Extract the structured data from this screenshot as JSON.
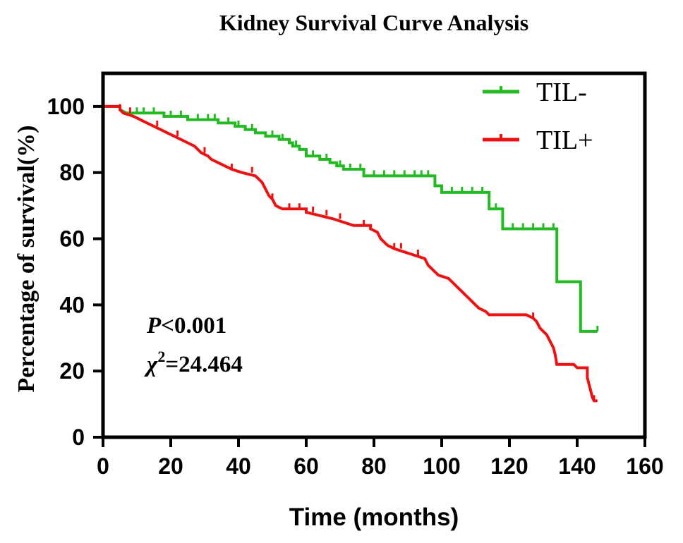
{
  "chart_data": {
    "type": "line",
    "title": "Kidney Survival Curve Analysis",
    "xlabel": "Time (months)",
    "ylabel": "Percentage of survival(%)",
    "xlim": [
      0,
      160
    ],
    "ylim": [
      0,
      110
    ],
    "xticks": [
      "0",
      "20",
      "40",
      "60",
      "80",
      "100",
      "120",
      "140",
      "160"
    ],
    "yticks": [
      "0",
      "20",
      "40",
      "60",
      "80",
      "100"
    ],
    "grid": false,
    "legend_position": "top-right",
    "annotations": {
      "p_label": "P",
      "p_value": "<0.001",
      "chi_label": "χ",
      "chi_sup": "2",
      "chi_value": "=24.464"
    },
    "series": [
      {
        "name": "TIL-",
        "color": "#22bb22",
        "points": [
          [
            0,
            100
          ],
          [
            5,
            100
          ],
          [
            5,
            99
          ],
          [
            7,
            98
          ],
          [
            18,
            98
          ],
          [
            18,
            97
          ],
          [
            25,
            97
          ],
          [
            25,
            96
          ],
          [
            34,
            96
          ],
          [
            34,
            95
          ],
          [
            39,
            95
          ],
          [
            39,
            94
          ],
          [
            42,
            94
          ],
          [
            42,
            93
          ],
          [
            45,
            93
          ],
          [
            45,
            92
          ],
          [
            48,
            92
          ],
          [
            48,
            91
          ],
          [
            52,
            91
          ],
          [
            52,
            90
          ],
          [
            55,
            90
          ],
          [
            55,
            89
          ],
          [
            56,
            89
          ],
          [
            56,
            88
          ],
          [
            58,
            88
          ],
          [
            58,
            87
          ],
          [
            60,
            87
          ],
          [
            60,
            85
          ],
          [
            64,
            85
          ],
          [
            64,
            84
          ],
          [
            67,
            84
          ],
          [
            67,
            83
          ],
          [
            69,
            83
          ],
          [
            69,
            82
          ],
          [
            71,
            82
          ],
          [
            71,
            81
          ],
          [
            77,
            81
          ],
          [
            77,
            79
          ],
          [
            98,
            79
          ],
          [
            98,
            76
          ],
          [
            100,
            76
          ],
          [
            100,
            74
          ],
          [
            114,
            74
          ],
          [
            114,
            69
          ],
          [
            118,
            69
          ],
          [
            118,
            63
          ],
          [
            134,
            63
          ],
          [
            134,
            47
          ],
          [
            141,
            47
          ],
          [
            141,
            32
          ],
          [
            146,
            32
          ]
        ],
        "censor_x": [
          5,
          10,
          12,
          15,
          20,
          23,
          28,
          31,
          33,
          37,
          40,
          44,
          50,
          53,
          57,
          62,
          66,
          70,
          73,
          76,
          80,
          83,
          86,
          89,
          92,
          94,
          96,
          103,
          106,
          109,
          112,
          116,
          121,
          124,
          127,
          130,
          133,
          146
        ]
      },
      {
        "name": "TIL+",
        "color": "#ee1111",
        "points": [
          [
            0,
            100
          ],
          [
            5,
            100
          ],
          [
            5,
            99
          ],
          [
            6,
            98
          ],
          [
            9,
            97
          ],
          [
            11,
            96
          ],
          [
            13,
            95
          ],
          [
            15,
            94
          ],
          [
            17,
            93
          ],
          [
            19,
            92
          ],
          [
            21,
            91
          ],
          [
            23,
            90
          ],
          [
            25,
            89
          ],
          [
            27,
            88
          ],
          [
            28,
            87
          ],
          [
            29,
            86
          ],
          [
            31,
            85
          ],
          [
            32,
            84
          ],
          [
            34,
            83
          ],
          [
            36,
            82
          ],
          [
            38,
            81
          ],
          [
            41,
            80
          ],
          [
            45,
            79
          ],
          [
            46,
            78
          ],
          [
            47,
            77
          ],
          [
            48,
            75
          ],
          [
            48.5,
            74
          ],
          [
            49,
            73
          ],
          [
            50,
            72
          ],
          [
            50.5,
            71
          ],
          [
            51,
            70
          ],
          [
            53,
            69
          ],
          [
            60,
            69
          ],
          [
            60,
            68
          ],
          [
            64,
            67
          ],
          [
            68,
            66
          ],
          [
            71,
            65
          ],
          [
            74,
            64
          ],
          [
            79,
            64
          ],
          [
            79,
            63
          ],
          [
            81,
            62
          ],
          [
            81.5,
            61
          ],
          [
            82,
            60
          ],
          [
            83,
            59
          ],
          [
            84,
            58
          ],
          [
            86,
            57
          ],
          [
            89,
            56
          ],
          [
            92,
            55
          ],
          [
            95,
            54
          ],
          [
            95.5,
            53
          ],
          [
            96,
            52
          ],
          [
            97,
            51
          ],
          [
            98,
            50
          ],
          [
            99,
            49
          ],
          [
            102,
            48
          ],
          [
            103,
            47
          ],
          [
            104,
            46
          ],
          [
            105,
            45
          ],
          [
            106,
            44
          ],
          [
            107,
            43
          ],
          [
            108,
            42
          ],
          [
            109,
            41
          ],
          [
            110,
            40
          ],
          [
            111,
            39
          ],
          [
            113,
            38
          ],
          [
            114,
            37
          ],
          [
            125,
            37
          ],
          [
            127,
            36
          ],
          [
            128,
            35
          ],
          [
            129,
            33
          ],
          [
            130,
            32
          ],
          [
            131,
            31
          ],
          [
            132,
            29
          ],
          [
            133,
            27
          ],
          [
            133.5,
            25
          ],
          [
            134,
            22
          ],
          [
            139,
            22
          ],
          [
            140,
            21
          ],
          [
            143,
            21
          ],
          [
            143,
            18
          ],
          [
            144,
            14
          ],
          [
            144.5,
            12
          ],
          [
            145,
            11
          ],
          [
            146,
            11
          ]
        ],
        "censor_x": [
          5,
          8,
          16,
          22,
          30,
          38,
          44,
          50,
          55,
          58,
          62,
          66,
          70,
          77,
          86,
          88,
          93,
          127,
          145
        ]
      }
    ]
  }
}
